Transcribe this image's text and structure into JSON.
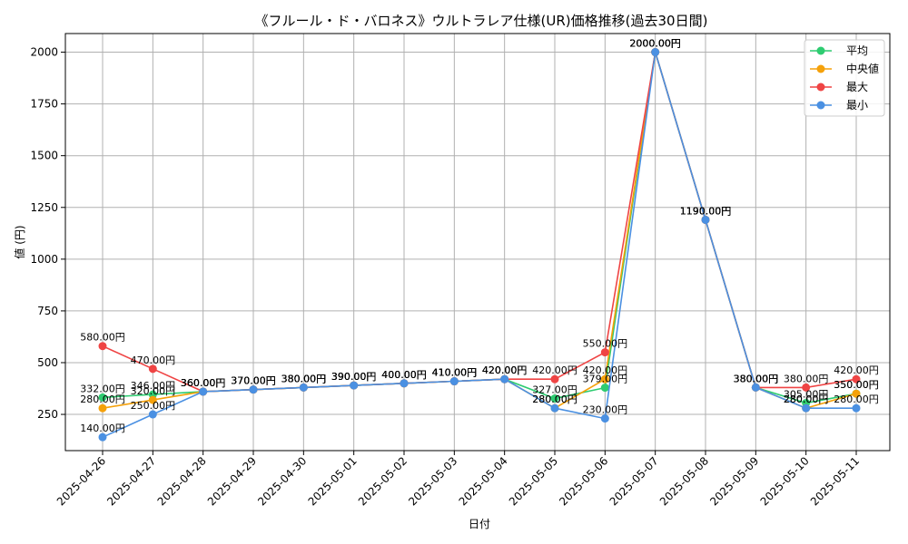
{
  "chart_data": {
    "type": "line",
    "title": "《フルール・ド・バロネス》ウルトラレア仕様(UR)価格推移(過去30日間)",
    "xlabel": "日付",
    "ylabel": "値 (円)",
    "ylim": [
      75,
      2090
    ],
    "yticks": [
      250,
      500,
      750,
      1000,
      1250,
      1500,
      1750,
      2000
    ],
    "grid": true,
    "legend_position": "top-right",
    "categories": [
      "2025-04-26",
      "2025-04-27",
      "2025-04-28",
      "2025-04-29",
      "2025-04-30",
      "2025-05-01",
      "2025-05-02",
      "2025-05-03",
      "2025-05-04",
      "2025-05-05",
      "2025-05-06",
      "2025-05-07",
      "2025-05-08",
      "2025-05-09",
      "2025-05-10",
      "2025-05-11"
    ],
    "series": [
      {
        "name": "平均",
        "color": "#2ecc71",
        "values": [
          332,
          346,
          360,
          370,
          380,
          390,
          400,
          410,
          420,
          327,
          379,
          2000,
          1190,
          380,
          305,
          350
        ],
        "labels": [
          "332.00円",
          "346.00円",
          "360.00円",
          "370.00円",
          "380.00円",
          "390.00円",
          "400.00円",
          "410.00円",
          "420.00円",
          "327.00円",
          "379.00円",
          "2000.00円",
          "1190.00円",
          "380.00円",
          "305.00円",
          "350.00円"
        ]
      },
      {
        "name": "中央値",
        "color": "#f5a10a",
        "values": [
          280,
          320,
          360,
          370,
          380,
          390,
          400,
          410,
          420,
          280,
          420,
          2000,
          1190,
          380,
          280,
          350
        ],
        "labels": [
          "280.00円",
          "320.00円",
          "360.00円",
          "370.00円",
          "380.00円",
          "390.00円",
          "400.00円",
          "410.00円",
          "420.00円",
          "280.00円",
          "420.00円",
          "2000.00円",
          "1190.00円",
          "380.00円",
          "280.00円",
          "350.00円"
        ]
      },
      {
        "name": "最大",
        "color": "#ef4444",
        "values": [
          580,
          470,
          360,
          370,
          380,
          390,
          400,
          410,
          420,
          420,
          550,
          2000,
          1190,
          380,
          380,
          420
        ],
        "labels": [
          "580.00円",
          "470.00円",
          "360.00円",
          "370.00円",
          "380.00円",
          "390.00円",
          "400.00円",
          "410.00円",
          "420.00円",
          "420.00円",
          "550.00円",
          "2000.00円",
          "1190.00円",
          "380.00円",
          "380.00円",
          "420.00円"
        ]
      },
      {
        "name": "最小",
        "color": "#4a90e2",
        "values": [
          140,
          250,
          360,
          370,
          380,
          390,
          400,
          410,
          420,
          280,
          230,
          2000,
          1190,
          380,
          280,
          280
        ],
        "labels": [
          "140.00円",
          "250.00円",
          "360.00円",
          "370.00円",
          "380.00円",
          "390.00円",
          "400.00円",
          "410.00円",
          "420.00円",
          "280.00円",
          "230.00円",
          "2000.00円",
          "1190.00円",
          "380.00円",
          "280.00円",
          "280.00円"
        ]
      }
    ]
  }
}
